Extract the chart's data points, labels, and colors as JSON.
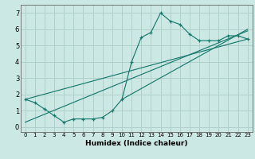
{
  "xlabel": "Humidex (Indice chaleur)",
  "background_color": "#cce8e4",
  "grid_color": "#b0d0cc",
  "line_color": "#1a7a6e",
  "xlim": [
    -0.5,
    23.5
  ],
  "ylim": [
    -0.3,
    7.5
  ],
  "xticks": [
    0,
    1,
    2,
    3,
    4,
    5,
    6,
    7,
    8,
    9,
    10,
    11,
    12,
    13,
    14,
    15,
    16,
    17,
    18,
    19,
    20,
    21,
    22,
    23
  ],
  "yticks": [
    0,
    1,
    2,
    3,
    4,
    5,
    6,
    7
  ],
  "main_x": [
    0,
    1,
    2,
    3,
    4,
    5,
    6,
    7,
    8,
    9,
    10,
    11,
    12,
    13,
    14,
    15,
    16,
    17,
    18,
    19,
    20,
    21,
    22,
    23
  ],
  "main_y": [
    1.7,
    1.5,
    1.1,
    0.7,
    0.3,
    0.5,
    0.5,
    0.5,
    0.6,
    1.0,
    1.7,
    4.0,
    5.5,
    5.8,
    7.0,
    6.5,
    6.3,
    5.7,
    5.3,
    5.3,
    5.3,
    5.6,
    5.6,
    5.4
  ],
  "line1_x": [
    0,
    23
  ],
  "line1_y": [
    1.7,
    5.4
  ],
  "line2_x": [
    0,
    23
  ],
  "line2_y": [
    0.3,
    5.9
  ],
  "line3_x": [
    10,
    23
  ],
  "line3_y": [
    1.7,
    6.0
  ],
  "xlabel_fontsize": 6.5,
  "tick_fontsize_x": 5.0,
  "tick_fontsize_y": 6.0
}
